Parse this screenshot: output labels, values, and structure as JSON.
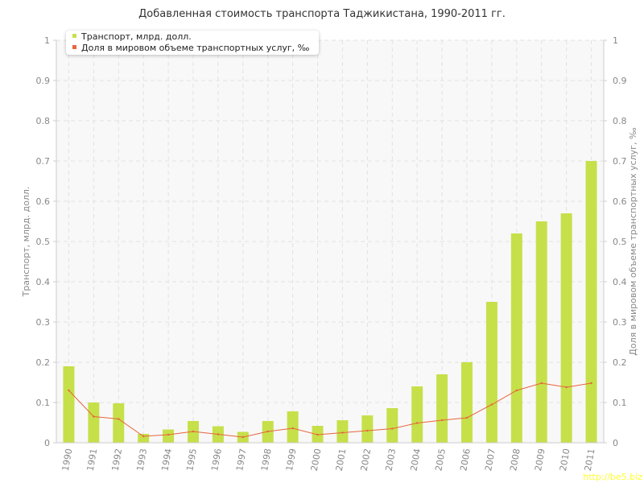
{
  "chart_data": {
    "type": "bar",
    "title": "Добавленная стоимость транспорта Таджикистана, 1990-2011 гг.",
    "categories": [
      "1990",
      "1991",
      "1992",
      "1993",
      "1994",
      "1995",
      "1996",
      "1997",
      "1998",
      "1999",
      "2000",
      "2001",
      "2002",
      "2003",
      "2004",
      "2005",
      "2006",
      "2007",
      "2008",
      "2009",
      "2010",
      "2011"
    ],
    "series": [
      {
        "name": "Транспорт, млрд. долл.",
        "type": "bar",
        "axis": "left",
        "color": "#c6e04a",
        "values": [
          0.19,
          0.1,
          0.098,
          0.022,
          0.033,
          0.054,
          0.041,
          0.027,
          0.054,
          0.078,
          0.042,
          0.056,
          0.068,
          0.086,
          0.14,
          0.17,
          0.2,
          0.35,
          0.52,
          0.55,
          0.57,
          0.7
        ]
      },
      {
        "name": "Доля в мировом объеме транспортных услуг, ‰",
        "type": "line",
        "axis": "right",
        "color": "#e8643c",
        "values": [
          0.13,
          0.065,
          0.059,
          0.016,
          0.02,
          0.028,
          0.021,
          0.014,
          0.028,
          0.036,
          0.02,
          0.025,
          0.03,
          0.035,
          0.049,
          0.056,
          0.062,
          0.095,
          0.13,
          0.148,
          0.138,
          0.148
        ]
      }
    ],
    "ylabel": "Транспорт, млрд. долл.",
    "y2label": "Доля в мировом объеме транспортных услуг, ‰",
    "ylim": [
      0,
      1
    ],
    "y2lim": [
      0,
      1
    ],
    "yticks": [
      "0",
      "0.1",
      "0.2",
      "0.3",
      "0.4",
      "0.5",
      "0.6",
      "0.7",
      "0.8",
      "0.9",
      "1"
    ],
    "grid": true,
    "legend_position": "top-left"
  },
  "watermark": "http://be5.biz"
}
